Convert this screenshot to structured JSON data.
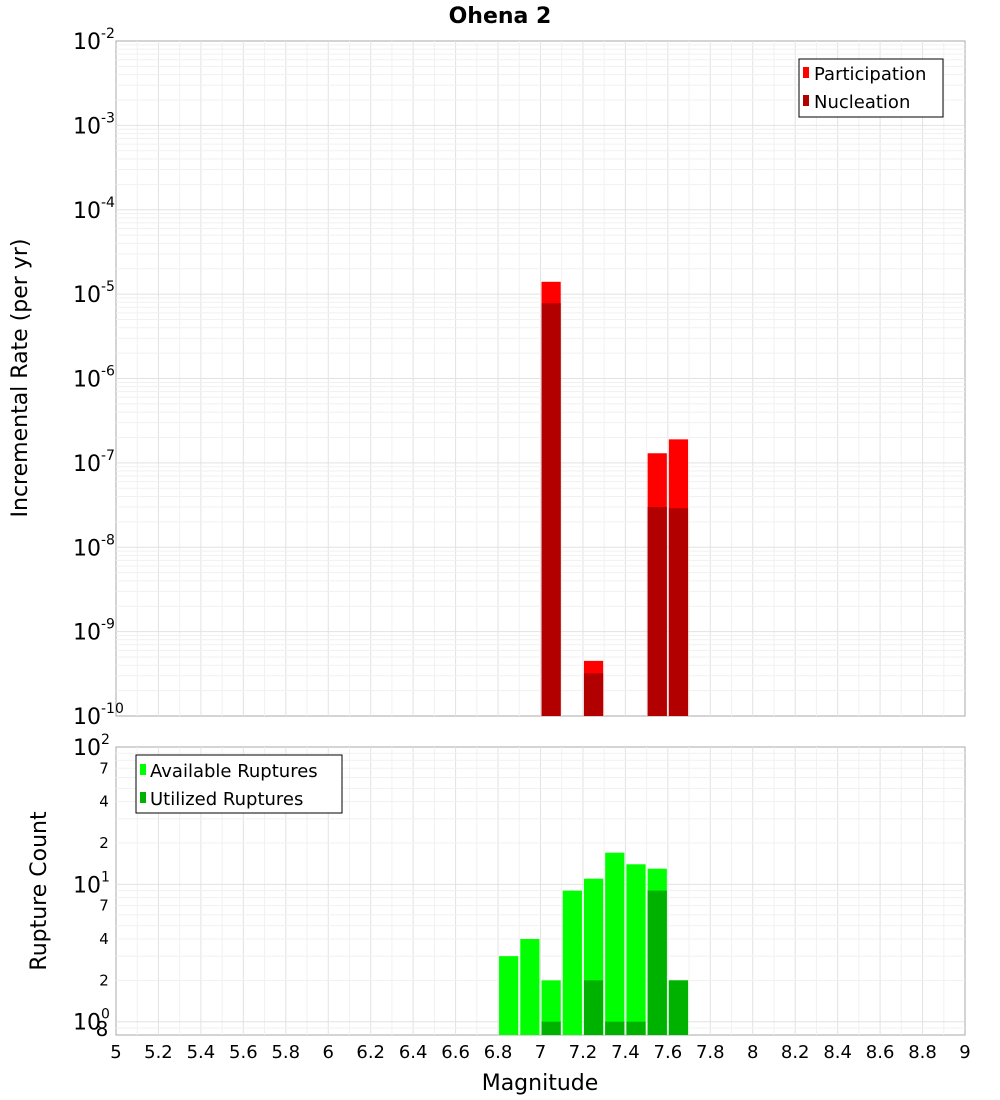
{
  "chart_data": [
    {
      "type": "bar",
      "title": "Ohena 2",
      "ylabel": "Incremental Rate (per yr)",
      "xlabel": "Magnitude",
      "yscale": "log",
      "ylim": [
        1e-10,
        0.01
      ],
      "xlim": [
        5,
        9
      ],
      "grid": true,
      "legend_position": "top-right",
      "y_tick_labels": [
        {
          "base": "10",
          "exp": "-10"
        },
        {
          "base": "10",
          "exp": "-9"
        },
        {
          "base": "10",
          "exp": "-8"
        },
        {
          "base": "10",
          "exp": "-7"
        },
        {
          "base": "10",
          "exp": "-6"
        },
        {
          "base": "10",
          "exp": "-5"
        },
        {
          "base": "10",
          "exp": "-4"
        },
        {
          "base": "10",
          "exp": "-3"
        },
        {
          "base": "10",
          "exp": "-2"
        }
      ],
      "x": [
        7.05,
        7.25,
        7.55,
        7.65
      ],
      "series": [
        {
          "name": "Participation",
          "color": "#ff0000",
          "values": [
            1.4e-05,
            4.5e-10,
            1.3e-07,
            1.9e-07
          ]
        },
        {
          "name": "Nucleation",
          "color": "#b20000",
          "values": [
            7.8e-06,
            3.2e-10,
            3e-08,
            2.9e-08
          ]
        }
      ]
    },
    {
      "type": "bar",
      "ylabel": "Rupture Count",
      "xlabel": "Magnitude",
      "yscale": "log",
      "ylim": [
        0.8,
        100
      ],
      "xlim": [
        5,
        9
      ],
      "grid": true,
      "legend_position": "top-left",
      "y_tick_labels": [
        {
          "base": "10",
          "exp": "0",
          "value": 1
        },
        {
          "base": "10",
          "exp": "1",
          "value": 10
        },
        {
          "base": "10",
          "exp": "2",
          "value": 100
        }
      ],
      "y_minor_tick_labels": [
        {
          "label": "8",
          "value": 0.8
        },
        {
          "label": "2",
          "value": 2
        },
        {
          "label": "4",
          "value": 4
        },
        {
          "label": "7",
          "value": 7
        },
        {
          "label": "2",
          "value": 20
        },
        {
          "label": "4",
          "value": 40
        },
        {
          "label": "7",
          "value": 70
        }
      ],
      "x": [
        6.85,
        6.95,
        7.05,
        7.15,
        7.25,
        7.35,
        7.45,
        7.55,
        7.65
      ],
      "series": [
        {
          "name": "Available Ruptures",
          "color": "#00ff00",
          "values": [
            3,
            4,
            2,
            9,
            11,
            17,
            14,
            13,
            2
          ]
        },
        {
          "name": "Utilized Ruptures",
          "color": "#00b200",
          "values": [
            0,
            0,
            1,
            0,
            2,
            1,
            1,
            9,
            2
          ]
        }
      ]
    }
  ],
  "x_tick_labels": [
    "5",
    "5.2",
    "5.4",
    "5.6",
    "5.8",
    "6",
    "6.2",
    "6.4",
    "6.6",
    "6.8",
    "7",
    "7.2",
    "7.4",
    "7.6",
    "7.8",
    "8",
    "8.2",
    "8.4",
    "8.6",
    "8.8",
    "9"
  ]
}
